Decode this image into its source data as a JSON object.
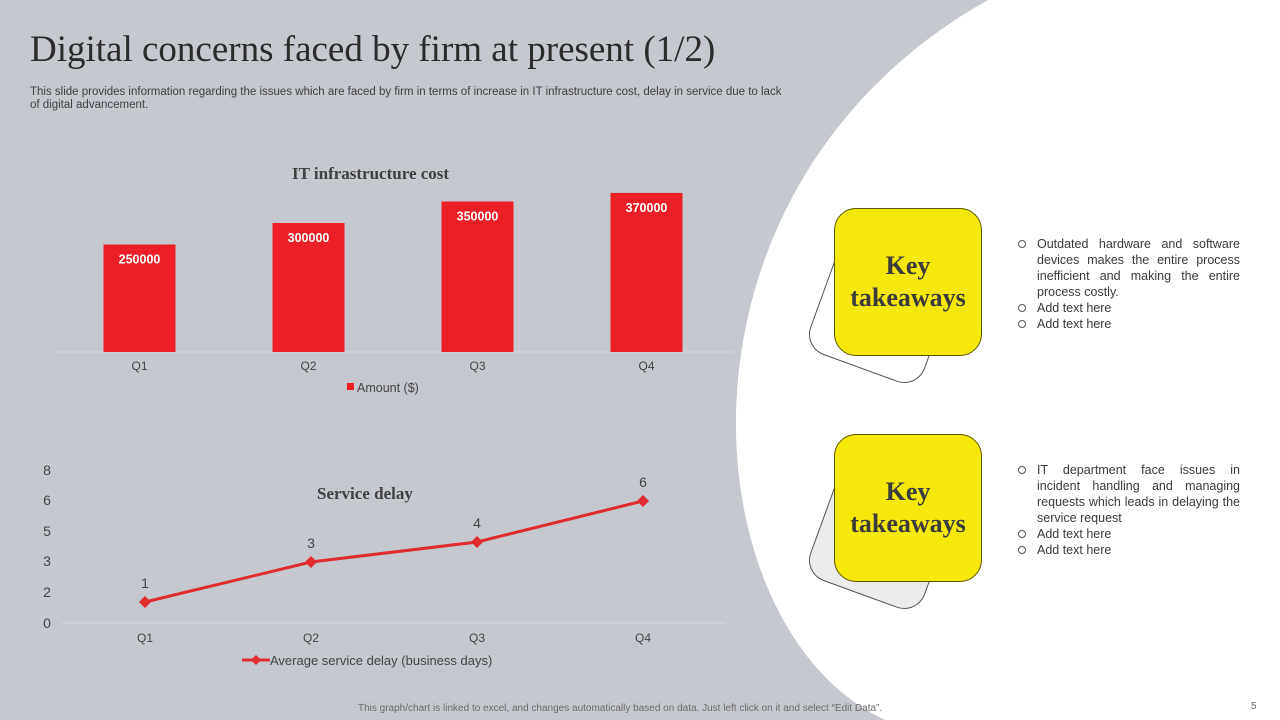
{
  "title": "Digital concerns faced by firm at present (1/2)",
  "subtitle": "This slide provides information regarding the issues which are faced by firm in terms of increase in IT infrastructure cost, delay in service due to lack of digital advancement.",
  "colors": {
    "background": "#c6c8cf",
    "accent_red": "#ec1f26",
    "line_red": "#e02b2f",
    "takeaway_yellow": "#f7e80b"
  },
  "chart_data": [
    {
      "type": "bar",
      "title": "IT infrastructure cost",
      "categories": [
        "Q1",
        "Q2",
        "Q3",
        "Q4"
      ],
      "series": [
        {
          "name": "Amount ($)",
          "values": [
            250000,
            300000,
            350000,
            370000
          ]
        }
      ],
      "ylim": [
        0,
        400000
      ],
      "grid": false,
      "legend": "bottom"
    },
    {
      "type": "line",
      "title": "Service delay",
      "categories": [
        "Q1",
        "Q2",
        "Q3",
        "Q4"
      ],
      "y_ticks": [
        "0",
        "2",
        "3",
        "5",
        "6",
        "8"
      ],
      "series": [
        {
          "name": "Average service delay (business days)",
          "values": [
            1,
            3,
            4,
            6
          ],
          "marker": "diamond"
        }
      ],
      "grid": false,
      "legend": "bottom"
    }
  ],
  "takeaways": [
    {
      "label_line1": "Key",
      "label_line2": "takeaways",
      "points": [
        "Outdated hardware and software devices makes the entire process inefficient and making the entire process costly.",
        "Add text here",
        "Add text here"
      ]
    },
    {
      "label_line1": "Key",
      "label_line2": "takeaways",
      "points": [
        "IT department face issues in incident handling and managing requests which leads in delaying the service request",
        "Add text here",
        "Add text here"
      ]
    }
  ],
  "footnote": "This graph/chart is linked to excel, and changes automatically based on data. Just left click on it and select “Edit Data”.",
  "page_number": "5"
}
